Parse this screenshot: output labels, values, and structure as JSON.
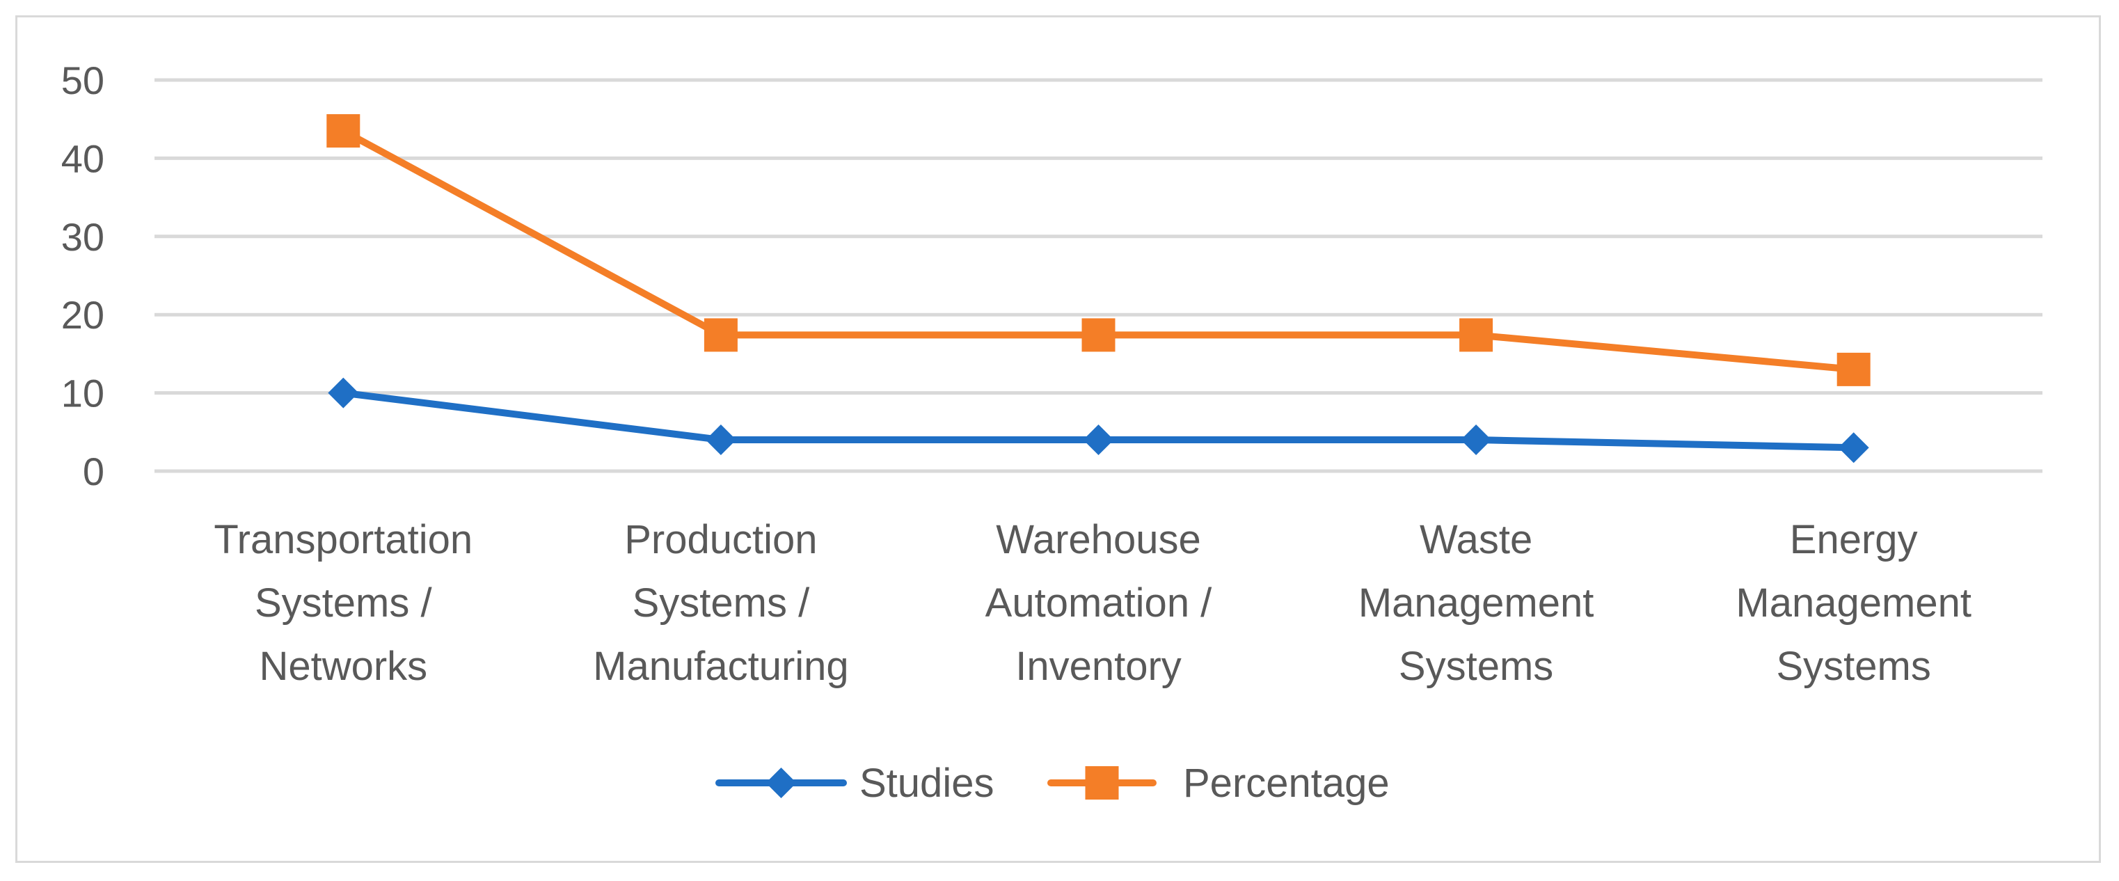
{
  "chart_data": {
    "type": "line",
    "categories": [
      [
        "Transportation",
        "Systems /",
        "Networks"
      ],
      [
        "Production",
        "Systems /",
        "Manufacturing"
      ],
      [
        "Warehouse",
        "Automation /",
        "Inventory"
      ],
      [
        "Waste",
        "Management",
        "Systems"
      ],
      [
        "Energy",
        "Management",
        "Systems"
      ]
    ],
    "series": [
      {
        "name": "Studies",
        "values": [
          10,
          4,
          4,
          4,
          3
        ],
        "color": "#1f6fc5",
        "marker": "diamond"
      },
      {
        "name": "Percentage",
        "values": [
          43.5,
          17.4,
          17.4,
          17.4,
          13.0
        ],
        "color": "#f47e27",
        "marker": "square"
      }
    ],
    "ylim": [
      0,
      50
    ],
    "yticks": [
      0,
      10,
      20,
      30,
      40,
      50
    ],
    "grid": true,
    "gridColor": "#d9d9d9",
    "legend_position": "bottom"
  }
}
